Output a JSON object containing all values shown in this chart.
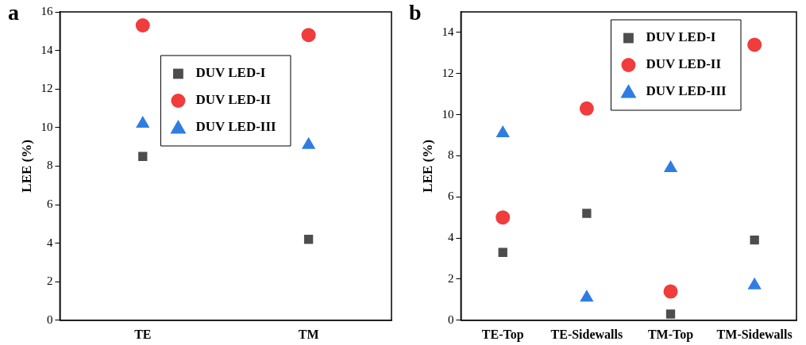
{
  "chart_data": [
    {
      "type": "scatter",
      "title": "a",
      "ylabel": "LEE (%)",
      "categories": [
        "TE",
        "TM"
      ],
      "ylim": [
        0,
        16
      ],
      "yticks": [
        0,
        2,
        4,
        6,
        8,
        10,
        12,
        14,
        16
      ],
      "legend": "top",
      "grid": false,
      "series": [
        {
          "name": "DUV LED-I",
          "color": "#4d4d4d",
          "marker": "square",
          "values": [
            8.5,
            4.2
          ]
        },
        {
          "name": "DUV LED-II",
          "color": "#f03c3c",
          "marker": "circle",
          "values": [
            15.3,
            14.8
          ]
        },
        {
          "name": "DUV LED-III",
          "color": "#2f7de1",
          "marker": "triangle",
          "values": [
            10.2,
            9.1
          ]
        }
      ]
    },
    {
      "type": "scatter",
      "title": "b",
      "ylabel": "LEE (%)",
      "categories": [
        "TE-Top",
        "TE-Sidewalls",
        "TM-Top",
        "TM-Sidewalls"
      ],
      "ylim": [
        0,
        15
      ],
      "yticks": [
        0,
        2,
        4,
        6,
        8,
        10,
        12,
        14
      ],
      "legend": "top right",
      "grid": false,
      "series": [
        {
          "name": "DUV LED-I",
          "color": "#4d4d4d",
          "marker": "square",
          "values": [
            3.3,
            5.2,
            0.3,
            3.9
          ]
        },
        {
          "name": "DUV LED-II",
          "color": "#f03c3c",
          "marker": "circle",
          "values": [
            5.0,
            10.3,
            1.4,
            13.4
          ]
        },
        {
          "name": "DUV LED-III",
          "color": "#2f7de1",
          "marker": "triangle",
          "values": [
            9.1,
            1.1,
            7.4,
            1.7
          ]
        }
      ]
    }
  ]
}
